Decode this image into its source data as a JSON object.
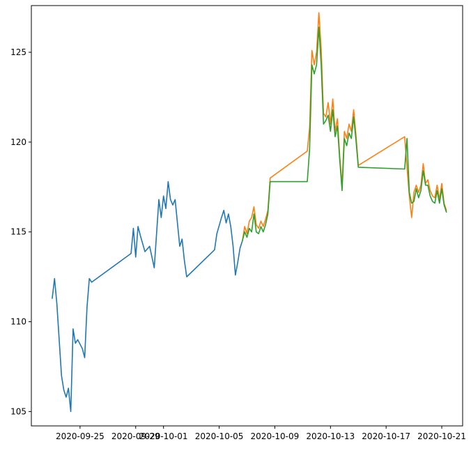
{
  "chart_data": {
    "type": "line",
    "title": "",
    "xlabel": "",
    "ylabel": "",
    "x_axis_type": "date",
    "xlim": [
      "2020-09-21T12:00",
      "2020-10-22T12:00"
    ],
    "ylim": [
      104.2,
      127.6
    ],
    "x_ticks": [
      "2020-09-25",
      "2020-09-29",
      "2020-10-01",
      "2020-10-05",
      "2020-10-09",
      "2020-10-13",
      "2020-10-17",
      "2020-10-21"
    ],
    "y_ticks": [
      105,
      110,
      115,
      120,
      125
    ],
    "grid": false,
    "legend": "none",
    "series": [
      {
        "color": "#1f77b4",
        "points": [
          [
            "2020-09-23T00:00",
            111.3
          ],
          [
            "2020-09-23T04:00",
            112.4
          ],
          [
            "2020-09-23T08:00",
            111.0
          ],
          [
            "2020-09-23T12:00",
            109.0
          ],
          [
            "2020-09-23T16:00",
            107.0
          ],
          [
            "2020-09-23T20:00",
            106.2
          ],
          [
            "2020-09-24T00:00",
            105.8
          ],
          [
            "2020-09-24T04:00",
            106.3
          ],
          [
            "2020-09-24T08:00",
            105.0
          ],
          [
            "2020-09-24T12:00",
            109.6
          ],
          [
            "2020-09-24T16:00",
            108.8
          ],
          [
            "2020-09-24T20:00",
            109.0
          ],
          [
            "2020-09-25T04:00",
            108.5
          ],
          [
            "2020-09-25T08:00",
            108.0
          ],
          [
            "2020-09-25T12:00",
            110.8
          ],
          [
            "2020-09-25T16:00",
            112.4
          ],
          [
            "2020-09-25T20:00",
            112.2
          ],
          [
            "2020-09-28T16:00",
            113.8
          ],
          [
            "2020-09-28T20:00",
            115.2
          ],
          [
            "2020-09-29T00:00",
            113.6
          ],
          [
            "2020-09-29T04:00",
            115.3
          ],
          [
            "2020-09-29T08:00",
            114.8
          ],
          [
            "2020-09-29T16:00",
            113.9
          ],
          [
            "2020-09-30T00:00",
            114.2
          ],
          [
            "2020-09-30T08:00",
            113.0
          ],
          [
            "2020-09-30T16:00",
            116.8
          ],
          [
            "2020-09-30T20:00",
            115.8
          ],
          [
            "2020-10-01T00:00",
            117.0
          ],
          [
            "2020-10-01T04:00",
            116.3
          ],
          [
            "2020-10-01T08:00",
            117.8
          ],
          [
            "2020-10-01T12:00",
            116.8
          ],
          [
            "2020-10-01T16:00",
            116.5
          ],
          [
            "2020-10-01T20:00",
            116.8
          ],
          [
            "2020-10-02T04:00",
            114.2
          ],
          [
            "2020-10-02T08:00",
            114.6
          ],
          [
            "2020-10-02T12:00",
            113.4
          ],
          [
            "2020-10-02T16:00",
            112.5
          ],
          [
            "2020-10-04T16:00",
            114.0
          ],
          [
            "2020-10-04T20:00",
            114.9
          ],
          [
            "2020-10-05T04:00",
            115.8
          ],
          [
            "2020-10-05T08:00",
            116.2
          ],
          [
            "2020-10-05T12:00",
            115.5
          ],
          [
            "2020-10-05T16:00",
            116.0
          ],
          [
            "2020-10-05T20:00",
            115.3
          ],
          [
            "2020-10-06T00:00",
            114.2
          ],
          [
            "2020-10-06T04:00",
            112.6
          ],
          [
            "2020-10-06T08:00",
            113.3
          ],
          [
            "2020-10-06T12:00",
            114.1
          ],
          [
            "2020-10-06T16:00",
            114.5
          ]
        ]
      },
      {
        "color": "#ff7f0e",
        "points": [
          [
            "2020-10-06T16:00",
            114.5
          ],
          [
            "2020-10-06T20:00",
            115.3
          ],
          [
            "2020-10-07T00:00",
            114.9
          ],
          [
            "2020-10-07T04:00",
            115.6
          ],
          [
            "2020-10-07T08:00",
            115.8
          ],
          [
            "2020-10-07T12:00",
            116.4
          ],
          [
            "2020-10-07T16:00",
            115.4
          ],
          [
            "2020-10-07T20:00",
            115.2
          ],
          [
            "2020-10-08T00:00",
            115.6
          ],
          [
            "2020-10-08T04:00",
            115.3
          ],
          [
            "2020-10-08T08:00",
            115.7
          ],
          [
            "2020-10-08T12:00",
            116.2
          ],
          [
            "2020-10-08T16:00",
            118.0
          ],
          [
            "2020-10-11T08:00",
            119.5
          ],
          [
            "2020-10-11T12:00",
            120.8
          ],
          [
            "2020-10-11T16:00",
            125.1
          ],
          [
            "2020-10-11T20:00",
            124.3
          ],
          [
            "2020-10-12T00:00",
            125.0
          ],
          [
            "2020-10-12T04:00",
            127.2
          ],
          [
            "2020-10-12T08:00",
            125.2
          ],
          [
            "2020-10-12T12:00",
            121.6
          ],
          [
            "2020-10-12T16:00",
            121.4
          ],
          [
            "2020-10-12T20:00",
            122.2
          ],
          [
            "2020-10-13T00:00",
            121.0
          ],
          [
            "2020-10-13T04:00",
            122.4
          ],
          [
            "2020-10-13T08:00",
            120.6
          ],
          [
            "2020-10-13T12:00",
            121.3
          ],
          [
            "2020-10-13T16:00",
            119.2
          ],
          [
            "2020-10-13T20:00",
            117.6
          ],
          [
            "2020-10-14T00:00",
            120.6
          ],
          [
            "2020-10-14T04:00",
            120.2
          ],
          [
            "2020-10-14T08:00",
            121.0
          ],
          [
            "2020-10-14T12:00",
            120.6
          ],
          [
            "2020-10-14T16:00",
            121.8
          ],
          [
            "2020-10-14T20:00",
            120.4
          ],
          [
            "2020-10-15T00:00",
            118.7
          ],
          [
            "2020-10-18T08:00",
            120.3
          ],
          [
            "2020-10-18T12:00",
            118.6
          ],
          [
            "2020-10-18T16:00",
            117.0
          ],
          [
            "2020-10-18T20:00",
            115.8
          ],
          [
            "2020-10-19T00:00",
            117.2
          ],
          [
            "2020-10-19T04:00",
            117.6
          ],
          [
            "2020-10-19T08:00",
            117.2
          ],
          [
            "2020-10-19T12:00",
            117.6
          ],
          [
            "2020-10-19T16:00",
            118.8
          ],
          [
            "2020-10-19T20:00",
            117.7
          ],
          [
            "2020-10-20T00:00",
            117.9
          ],
          [
            "2020-10-20T04:00",
            117.3
          ],
          [
            "2020-10-20T08:00",
            117.0
          ],
          [
            "2020-10-20T12:00",
            116.9
          ],
          [
            "2020-10-20T16:00",
            117.6
          ],
          [
            "2020-10-20T20:00",
            116.8
          ],
          [
            "2020-10-21T00:00",
            117.7
          ],
          [
            "2020-10-21T04:00",
            116.6
          ],
          [
            "2020-10-21T08:00",
            116.2
          ]
        ]
      },
      {
        "color": "#2ca02c",
        "points": [
          [
            "2020-10-06T16:00",
            114.5
          ],
          [
            "2020-10-06T20:00",
            115.0
          ],
          [
            "2020-10-07T00:00",
            114.7
          ],
          [
            "2020-10-07T04:00",
            115.2
          ],
          [
            "2020-10-07T08:00",
            115.0
          ],
          [
            "2020-10-07T12:00",
            116.0
          ],
          [
            "2020-10-07T16:00",
            115.0
          ],
          [
            "2020-10-07T20:00",
            114.9
          ],
          [
            "2020-10-08T00:00",
            115.3
          ],
          [
            "2020-10-08T04:00",
            115.0
          ],
          [
            "2020-10-08T08:00",
            115.4
          ],
          [
            "2020-10-08T12:00",
            116.0
          ],
          [
            "2020-10-08T16:00",
            117.8
          ],
          [
            "2020-10-11T08:00",
            117.8
          ],
          [
            "2020-10-11T12:00",
            119.6
          ],
          [
            "2020-10-11T16:00",
            124.3
          ],
          [
            "2020-10-11T20:00",
            123.8
          ],
          [
            "2020-10-12T00:00",
            124.3
          ],
          [
            "2020-10-12T04:00",
            126.4
          ],
          [
            "2020-10-12T08:00",
            124.3
          ],
          [
            "2020-10-12T12:00",
            121.0
          ],
          [
            "2020-10-12T16:00",
            121.2
          ],
          [
            "2020-10-12T20:00",
            121.5
          ],
          [
            "2020-10-13T00:00",
            120.6
          ],
          [
            "2020-10-13T04:00",
            121.8
          ],
          [
            "2020-10-13T08:00",
            120.3
          ],
          [
            "2020-10-13T12:00",
            120.9
          ],
          [
            "2020-10-13T16:00",
            119.0
          ],
          [
            "2020-10-13T20:00",
            117.3
          ],
          [
            "2020-10-14T00:00",
            120.2
          ],
          [
            "2020-10-14T04:00",
            119.8
          ],
          [
            "2020-10-14T08:00",
            120.5
          ],
          [
            "2020-10-14T12:00",
            120.2
          ],
          [
            "2020-10-14T16:00",
            121.4
          ],
          [
            "2020-10-14T20:00",
            120.1
          ],
          [
            "2020-10-15T00:00",
            118.6
          ],
          [
            "2020-10-18T08:00",
            118.5
          ],
          [
            "2020-10-18T12:00",
            120.2
          ],
          [
            "2020-10-18T16:00",
            117.2
          ],
          [
            "2020-10-18T20:00",
            116.6
          ],
          [
            "2020-10-19T00:00",
            116.7
          ],
          [
            "2020-10-19T04:00",
            117.4
          ],
          [
            "2020-10-19T08:00",
            116.9
          ],
          [
            "2020-10-19T12:00",
            117.3
          ],
          [
            "2020-10-19T16:00",
            118.4
          ],
          [
            "2020-10-19T20:00",
            117.6
          ],
          [
            "2020-10-20T00:00",
            117.6
          ],
          [
            "2020-10-20T04:00",
            117.0
          ],
          [
            "2020-10-20T08:00",
            116.7
          ],
          [
            "2020-10-20T12:00",
            116.6
          ],
          [
            "2020-10-20T16:00",
            117.3
          ],
          [
            "2020-10-20T20:00",
            116.6
          ],
          [
            "2020-10-21T00:00",
            117.4
          ],
          [
            "2020-10-21T04:00",
            116.5
          ],
          [
            "2020-10-21T08:00",
            116.1
          ]
        ]
      }
    ]
  }
}
